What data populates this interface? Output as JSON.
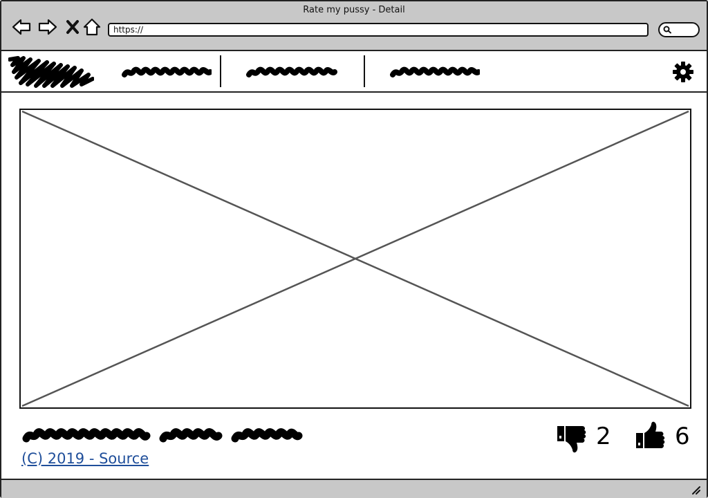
{
  "window": {
    "title": "Rate my pussy - Detail"
  },
  "toolbar": {
    "back_icon": "back-arrow-icon",
    "forward_icon": "forward-arrow-icon",
    "stop_icon": "close-x-icon",
    "home_icon": "home-icon",
    "url": "https://",
    "search_icon": "search-icon"
  },
  "header": {
    "logo_icon": "logo-scribble",
    "nav_items": [
      "nav-link-1",
      "nav-link-2",
      "nav-link-3"
    ],
    "settings_icon": "gear-icon"
  },
  "main": {
    "image_placeholder": "image-placeholder",
    "caption": "scribbled-caption"
  },
  "footer": {
    "source_link": "(C) 2019 - Source",
    "dislikes": "2",
    "likes": "6",
    "dislike_icon": "thumbs-down-icon",
    "like_icon": "thumbs-up-icon"
  },
  "colors": {
    "chrome": "#c8c8c8",
    "border": "#222222",
    "link": "#1f4e9a"
  }
}
